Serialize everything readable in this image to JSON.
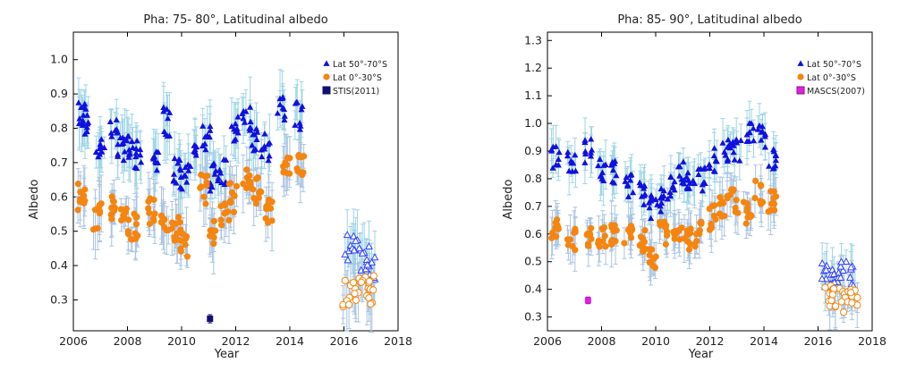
{
  "chart_data": [
    {
      "type": "scatter",
      "title": "Pha:  75- 80°, Latitudinal albedo",
      "xlabel": "Year",
      "ylabel": "Albedo",
      "xlim": [
        2006,
        2018
      ],
      "ylim": [
        0.21,
        1.08
      ],
      "xticks": [
        2006,
        2008,
        2010,
        2012,
        2014,
        2016,
        2018
      ],
      "yticks": [
        0.3,
        0.4,
        0.5,
        0.6,
        0.7,
        0.8,
        0.9,
        1.0
      ],
      "grid": false,
      "legend_position": "top-right",
      "legend": [
        "Lat 50°-70°S",
        "Lat 0°-30°S",
        "STIS(2011)"
      ],
      "series": [
        {
          "name": "Lat 50°-70°S",
          "marker": "triangle",
          "color": "#1010e0",
          "errcolor": "#9fd4e6",
          "points": [
            [
              2006.3,
              0.84
            ],
            [
              2006.4,
              0.82
            ],
            [
              2007.0,
              0.75
            ],
            [
              2007.5,
              0.78
            ],
            [
              2007.8,
              0.74
            ],
            [
              2008.1,
              0.76
            ],
            [
              2008.4,
              0.72
            ],
            [
              2009.0,
              0.72
            ],
            [
              2009.4,
              0.82
            ],
            [
              2009.8,
              0.68
            ],
            [
              2010.1,
              0.65
            ],
            [
              2010.4,
              0.73
            ],
            [
              2010.9,
              0.78
            ],
            [
              2011.2,
              0.66
            ],
            [
              2011.5,
              0.68
            ],
            [
              2012.0,
              0.8
            ],
            [
              2012.4,
              0.82
            ],
            [
              2012.7,
              0.76
            ],
            [
              2013.1,
              0.75
            ],
            [
              2013.7,
              0.86
            ],
            [
              2014.3,
              0.84
            ]
          ]
        },
        {
          "name": "",
          "marker": "triangle-open",
          "color": "#3040ff",
          "errcolor": "#9fd4e6",
          "points": [
            [
              2016.2,
              0.45
            ],
            [
              2016.5,
              0.43
            ],
            [
              2016.8,
              0.42
            ],
            [
              2017.0,
              0.4
            ]
          ]
        },
        {
          "name": "Lat 0°-30°S",
          "marker": "circle",
          "color": "#f5850f",
          "errcolor": "#aac4e0",
          "points": [
            [
              2006.3,
              0.6
            ],
            [
              2006.9,
              0.55
            ],
            [
              2007.5,
              0.57
            ],
            [
              2007.9,
              0.53
            ],
            [
              2008.3,
              0.52
            ],
            [
              2008.9,
              0.56
            ],
            [
              2009.4,
              0.53
            ],
            [
              2009.8,
              0.5
            ],
            [
              2010.1,
              0.47
            ],
            [
              2010.8,
              0.62
            ],
            [
              2011.1,
              0.49
            ],
            [
              2011.6,
              0.56
            ],
            [
              2011.9,
              0.6
            ],
            [
              2012.4,
              0.65
            ],
            [
              2012.8,
              0.62
            ],
            [
              2013.2,
              0.55
            ],
            [
              2013.9,
              0.68
            ],
            [
              2014.4,
              0.68
            ]
          ]
        },
        {
          "name": "",
          "marker": "circle-open",
          "color": "#f5850f",
          "errcolor": "#aac4e0",
          "points": [
            [
              2016.1,
              0.32
            ],
            [
              2016.5,
              0.34
            ],
            [
              2016.8,
              0.35
            ],
            [
              2017.0,
              0.33
            ]
          ]
        },
        {
          "name": "STIS(2011)",
          "marker": "square",
          "color": "#101070",
          "errcolor": "#101070",
          "points": [
            [
              2011.05,
              0.245
            ]
          ]
        }
      ]
    },
    {
      "type": "scatter",
      "title": "Pha:  85- 90°, Latitudinal albedo",
      "xlabel": "Year",
      "ylabel": "Albedo",
      "xlim": [
        2006,
        2018
      ],
      "ylim": [
        0.25,
        1.33
      ],
      "xticks": [
        2006,
        2008,
        2010,
        2012,
        2014,
        2016,
        2018
      ],
      "yticks": [
        0.3,
        0.4,
        0.5,
        0.6,
        0.7,
        0.8,
        0.9,
        1.0,
        1.1,
        1.2,
        1.3
      ],
      "grid": false,
      "legend_position": "top-right",
      "legend": [
        "Lat 50°-70°S",
        "Lat 0°-30°S",
        "MASCS(2007)"
      ],
      "series": [
        {
          "name": "Lat 50°-70°S",
          "marker": "triangle",
          "color": "#1010e0",
          "errcolor": "#9fd4e6",
          "points": [
            [
              2006.3,
              0.88
            ],
            [
              2006.9,
              0.87
            ],
            [
              2007.5,
              0.9
            ],
            [
              2008.0,
              0.83
            ],
            [
              2008.5,
              0.82
            ],
            [
              2009.0,
              0.78
            ],
            [
              2009.5,
              0.75
            ],
            [
              2009.9,
              0.7
            ],
            [
              2010.2,
              0.72
            ],
            [
              2010.6,
              0.77
            ],
            [
              2011.0,
              0.82
            ],
            [
              2011.3,
              0.8
            ],
            [
              2011.7,
              0.8
            ],
            [
              2012.1,
              0.87
            ],
            [
              2012.6,
              0.9
            ],
            [
              2013.0,
              0.9
            ],
            [
              2013.5,
              0.98
            ],
            [
              2013.9,
              0.95
            ],
            [
              2014.3,
              0.88
            ]
          ]
        },
        {
          "name": "",
          "marker": "triangle-open",
          "color": "#3040ff",
          "errcolor": "#9fd4e6",
          "points": [
            [
              2016.3,
              0.45
            ],
            [
              2016.6,
              0.45
            ],
            [
              2016.9,
              0.46
            ],
            [
              2017.2,
              0.44
            ]
          ]
        },
        {
          "name": "Lat 0°-30°S",
          "marker": "circle",
          "color": "#f5850f",
          "errcolor": "#aac4e0",
          "points": [
            [
              2006.3,
              0.62
            ],
            [
              2006.9,
              0.58
            ],
            [
              2007.5,
              0.6
            ],
            [
              2008.0,
              0.58
            ],
            [
              2008.5,
              0.6
            ],
            [
              2009.0,
              0.6
            ],
            [
              2009.5,
              0.58
            ],
            [
              2009.9,
              0.52
            ],
            [
              2010.3,
              0.6
            ],
            [
              2010.8,
              0.62
            ],
            [
              2011.2,
              0.58
            ],
            [
              2011.6,
              0.6
            ],
            [
              2012.1,
              0.66
            ],
            [
              2012.5,
              0.7
            ],
            [
              2012.9,
              0.72
            ],
            [
              2013.4,
              0.68
            ],
            [
              2013.8,
              0.75
            ],
            [
              2014.3,
              0.72
            ]
          ]
        },
        {
          "name": "",
          "marker": "circle-open",
          "color": "#f5850f",
          "errcolor": "#aac4e0",
          "points": [
            [
              2016.4,
              0.38
            ],
            [
              2016.7,
              0.36
            ],
            [
              2017.0,
              0.35
            ],
            [
              2017.3,
              0.37
            ]
          ]
        },
        {
          "name": "MASCS(2007)",
          "marker": "square",
          "color": "#e020e0",
          "errcolor": "#901090",
          "points": [
            [
              2007.5,
              0.36
            ]
          ]
        }
      ]
    }
  ]
}
